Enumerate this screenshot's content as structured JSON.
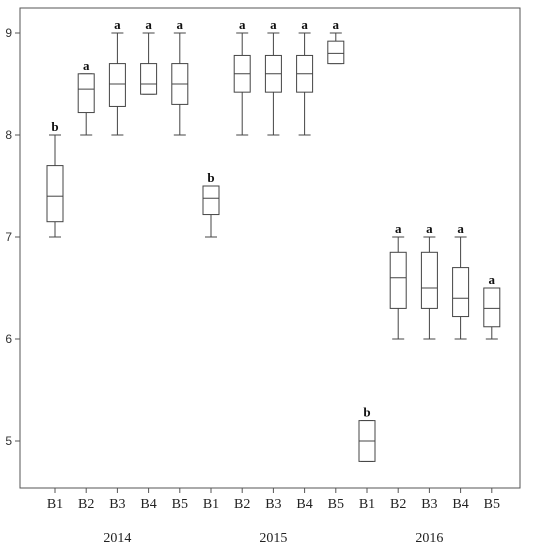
{
  "chart_data": {
    "type": "box",
    "ylim": [
      4.5,
      9.2
    ],
    "yticks": [
      5,
      6,
      7,
      8,
      9
    ],
    "groups": [
      {
        "year": "2014",
        "categories": [
          "B1",
          "B2",
          "B3",
          "B4",
          "B5"
        ]
      },
      {
        "year": "2015",
        "categories": [
          "B1",
          "B2",
          "B3",
          "B4",
          "B5"
        ]
      },
      {
        "year": "2016",
        "categories": [
          "B1",
          "B2",
          "B3",
          "B4",
          "B5"
        ]
      }
    ],
    "boxes": [
      {
        "year": "2014",
        "category": "B1",
        "min": 7.0,
        "q1": 7.15,
        "median": 7.4,
        "q3": 7.7,
        "max": 8.0,
        "letter": "b"
      },
      {
        "year": "2014",
        "category": "B2",
        "min": 8.0,
        "q1": 8.22,
        "median": 8.45,
        "q3": 8.6,
        "max": 8.6,
        "letter": "a"
      },
      {
        "year": "2014",
        "category": "B3",
        "min": 8.0,
        "q1": 8.28,
        "median": 8.5,
        "q3": 8.7,
        "max": 9.0,
        "letter": "a"
      },
      {
        "year": "2014",
        "category": "B4",
        "min": 8.4,
        "q1": 8.4,
        "median": 8.5,
        "q3": 8.7,
        "max": 9.0,
        "letter": "a"
      },
      {
        "year": "2014",
        "category": "B5",
        "min": 8.0,
        "q1": 8.3,
        "median": 8.5,
        "q3": 8.7,
        "max": 9.0,
        "letter": "a"
      },
      {
        "year": "2015",
        "category": "B1",
        "min": 7.0,
        "q1": 7.22,
        "median": 7.38,
        "q3": 7.5,
        "max": 7.5,
        "letter": "b"
      },
      {
        "year": "2015",
        "category": "B2",
        "min": 8.0,
        "q1": 8.42,
        "median": 8.6,
        "q3": 8.78,
        "max": 9.0,
        "letter": "a"
      },
      {
        "year": "2015",
        "category": "B3",
        "min": 8.0,
        "q1": 8.42,
        "median": 8.6,
        "q3": 8.78,
        "max": 9.0,
        "letter": "a"
      },
      {
        "year": "2015",
        "category": "B4",
        "min": 8.0,
        "q1": 8.42,
        "median": 8.6,
        "q3": 8.78,
        "max": 9.0,
        "letter": "a"
      },
      {
        "year": "2015",
        "category": "B5",
        "min": 8.7,
        "q1": 8.7,
        "median": 8.8,
        "q3": 8.92,
        "max": 9.0,
        "letter": "a"
      },
      {
        "year": "2016",
        "category": "B1",
        "min": 4.8,
        "q1": 4.8,
        "median": 5.0,
        "q3": 5.2,
        "max": 5.2,
        "letter": "b"
      },
      {
        "year": "2016",
        "category": "B2",
        "min": 6.0,
        "q1": 6.3,
        "median": 6.6,
        "q3": 6.85,
        "max": 7.0,
        "letter": "a"
      },
      {
        "year": "2016",
        "category": "B3",
        "min": 6.0,
        "q1": 6.3,
        "median": 6.5,
        "q3": 6.85,
        "max": 7.0,
        "letter": "a"
      },
      {
        "year": "2016",
        "category": "B4",
        "min": 6.0,
        "q1": 6.22,
        "median": 6.4,
        "q3": 6.7,
        "max": 7.0,
        "letter": "a"
      },
      {
        "year": "2016",
        "category": "B5",
        "min": 6.0,
        "q1": 6.12,
        "median": 6.3,
        "q3": 6.5,
        "max": 6.5,
        "letter": "a"
      }
    ],
    "grid": false,
    "legend": "none"
  }
}
